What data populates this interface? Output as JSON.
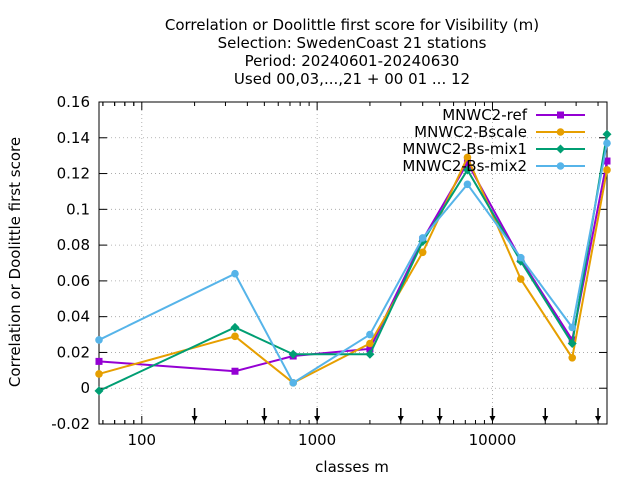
{
  "chart_data": {
    "type": "line",
    "title_lines": [
      "Correlation or Doolittle first score  for Visibility (m)",
      "Selection: SwedenCoast     21 stations",
      "Period: 20240601-20240630",
      "Used 00,03,...,21 + 00 01 ... 12"
    ],
    "xlabel": "classes m",
    "ylabel": "Correlation or Doolittle first score",
    "x_scale": "log",
    "xlim": [
      57,
      45000
    ],
    "ylim": [
      -0.02,
      0.16
    ],
    "x_ticks": [
      {
        "value": 100,
        "label": "100"
      },
      {
        "value": 1000,
        "label": "1000"
      },
      {
        "value": 10000,
        "label": "10000"
      }
    ],
    "y_ticks": [
      {
        "value": -0.02,
        "label": "-0.02"
      },
      {
        "value": 0,
        "label": "0"
      },
      {
        "value": 0.02,
        "label": "0.02"
      },
      {
        "value": 0.04,
        "label": "0.04"
      },
      {
        "value": 0.06,
        "label": "0.06"
      },
      {
        "value": 0.08,
        "label": "0.08"
      },
      {
        "value": 0.1,
        "label": "0.1"
      },
      {
        "value": 0.12,
        "label": "0.12"
      },
      {
        "value": 0.14,
        "label": "0.14"
      },
      {
        "value": 0.16,
        "label": "0.16"
      }
    ],
    "grid": true,
    "legend_position": "top-right",
    "class_limit_arrows": [
      200,
      500,
      1000,
      3000,
      5000,
      10000,
      20000,
      40000
    ],
    "x": [
      57,
      340,
      730,
      2000,
      4000,
      7200,
      14500,
      28500,
      45000
    ],
    "series": [
      {
        "name": "MNWC2-ref",
        "color": "#9400d3",
        "marker": "square",
        "values": [
          0.015,
          0.0095,
          0.018,
          0.022,
          0.083,
          0.126,
          0.072,
          0.027,
          0.127
        ]
      },
      {
        "name": "MNWC2-Bscale",
        "color": "#e69f00",
        "marker": "circle",
        "values": [
          0.008,
          0.029,
          0.003,
          0.025,
          0.076,
          0.129,
          0.061,
          0.017,
          0.122
        ]
      },
      {
        "name": "MNWC2-Bs-mix1",
        "color": "#009e73",
        "marker": "diamond",
        "values": [
          -0.0015,
          0.034,
          0.019,
          0.019,
          0.082,
          0.122,
          0.071,
          0.025,
          0.142
        ]
      },
      {
        "name": "MNWC2-Bs-mix2",
        "color": "#56b4e9",
        "marker": "circle",
        "values": [
          0.027,
          0.064,
          0.003,
          0.03,
          0.084,
          0.114,
          0.073,
          0.034,
          0.137
        ]
      }
    ]
  }
}
